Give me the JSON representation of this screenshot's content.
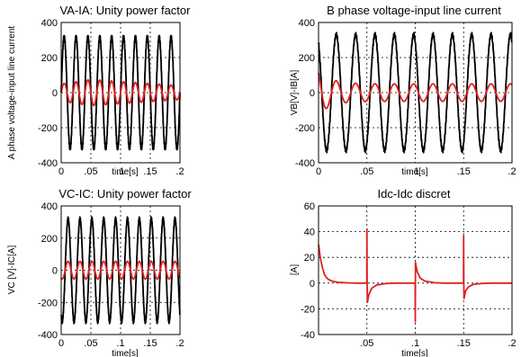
{
  "chart_data": [
    {
      "type": "line",
      "title": "VA-IA: Unity power factor",
      "xlabel": "time[s]",
      "ylabel": "A phase voltage-input line current",
      "xlim": [
        0,
        0.2
      ],
      "ylim": [
        -400,
        400
      ],
      "xticks": [
        0,
        0.05,
        0.1,
        0.15,
        0.2
      ],
      "yticks": [
        -400,
        -200,
        0,
        200,
        400
      ],
      "grid": true,
      "series": [
        {
          "color": "#000000",
          "waveform": "sine",
          "amplitude": 320,
          "frequency_hz": 50,
          "phase_deg": 0,
          "x": [
            0,
            0.2
          ]
        },
        {
          "color": "#e02020",
          "waveform": "sine",
          "amplitude": 55,
          "frequency_hz": 50,
          "phase_deg": 0,
          "envelope": "0 to 0.05: 50 rising to 75; 0.05 to 0.2: 75 decaying to 40",
          "x": [
            0,
            0.2
          ]
        }
      ]
    },
    {
      "type": "line",
      "title": "B phase voltage-input line current",
      "xlabel": "time[s]",
      "ylabel": "VB[V]-IB[A]",
      "xlim": [
        0,
        0.2
      ],
      "ylim": [
        -400,
        400
      ],
      "xticks": [
        0,
        0.05,
        0.1,
        0.15,
        0.2
      ],
      "yticks": [
        -400,
        -200,
        0,
        200,
        400
      ],
      "grid": true,
      "series": [
        {
          "color": "#000000",
          "waveform": "sine",
          "amplitude": 330,
          "frequency_hz": 50,
          "phase_deg": 120,
          "x": [
            0,
            0.2
          ]
        },
        {
          "color": "#e02020",
          "waveform": "sine",
          "amplitude": 50,
          "frequency_hz": 50,
          "phase_deg": 120,
          "initial_peak": 130,
          "x": [
            0,
            0.2
          ]
        }
      ]
    },
    {
      "type": "line",
      "title": "VC-IC: Unity power factor",
      "xlabel": "time[s]",
      "ylabel": "VC [V]-IC[A]",
      "xlim": [
        0,
        0.2
      ],
      "ylim": [
        -400,
        400
      ],
      "xticks": [
        0,
        0.05,
        0.1,
        0.15,
        0.2
      ],
      "yticks": [
        -400,
        -200,
        0,
        200,
        400
      ],
      "grid": true,
      "series": [
        {
          "color": "#000000",
          "waveform": "sine",
          "amplitude": 320,
          "frequency_hz": 50,
          "phase_deg": 240,
          "x": [
            0,
            0.2
          ]
        },
        {
          "color": "#e02020",
          "waveform": "sine",
          "amplitude": 55,
          "frequency_hz": 50,
          "phase_deg": 240,
          "x": [
            0,
            0.2
          ]
        }
      ]
    },
    {
      "type": "line",
      "title": "Idc-Idc discret",
      "xlabel": "time[s]",
      "ylabel": "[A]",
      "xlim": [
        0,
        0.2
      ],
      "ylim": [
        -40,
        60
      ],
      "xticks": [
        0.05,
        0.1,
        0.15,
        0.2
      ],
      "yticks": [
        -40,
        -20,
        0,
        20,
        40,
        60
      ],
      "grid": true,
      "series": [
        {
          "color": "#e02020",
          "x": [
            0,
            0.002,
            0.004,
            0.006,
            0.008,
            0.01,
            0.014,
            0.02,
            0.03,
            0.04,
            0.0499,
            0.05,
            0.0502,
            0.0505,
            0.052,
            0.055,
            0.06,
            0.07,
            0.08,
            0.09,
            0.0999,
            0.1,
            0.1002,
            0.1004,
            0.102,
            0.105,
            0.11,
            0.12,
            0.13,
            0.14,
            0.1499,
            0.15,
            0.1502,
            0.1504,
            0.152,
            0.155,
            0.16,
            0.17,
            0.18,
            0.19,
            0.2
          ],
          "y": [
            30,
            19,
            12,
            7,
            4.5,
            3,
            1.5,
            0.6,
            0.2,
            0,
            0,
            42,
            3,
            -15,
            -9,
            -4,
            -1.5,
            -0.3,
            0,
            0,
            0,
            -30,
            16,
            15,
            9,
            4,
            1.5,
            0.3,
            0,
            0,
            0,
            37,
            -2,
            -12,
            -6,
            -3,
            -1,
            -0.2,
            0,
            0,
            0
          ]
        }
      ]
    }
  ]
}
